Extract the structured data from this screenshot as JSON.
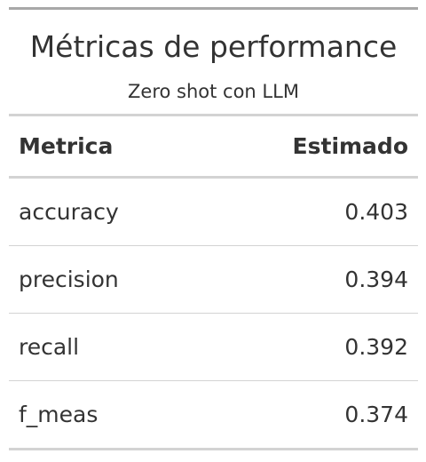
{
  "table": {
    "title": "Métricas de performance",
    "subtitle": "Zero shot con LLM",
    "columns": [
      "Metrica",
      "Estimado"
    ],
    "rows": [
      {
        "metrica": "accuracy",
        "estimado": "0.403"
      },
      {
        "metrica": "precision",
        "estimado": "0.394"
      },
      {
        "metrica": "recall",
        "estimado": "0.392"
      },
      {
        "metrica": "f_meas",
        "estimado": "0.374"
      }
    ]
  },
  "colors": {
    "text": "#333333",
    "top_rule": "#a8a8a8",
    "rule": "#d3d3d3",
    "background": "#ffffff"
  }
}
